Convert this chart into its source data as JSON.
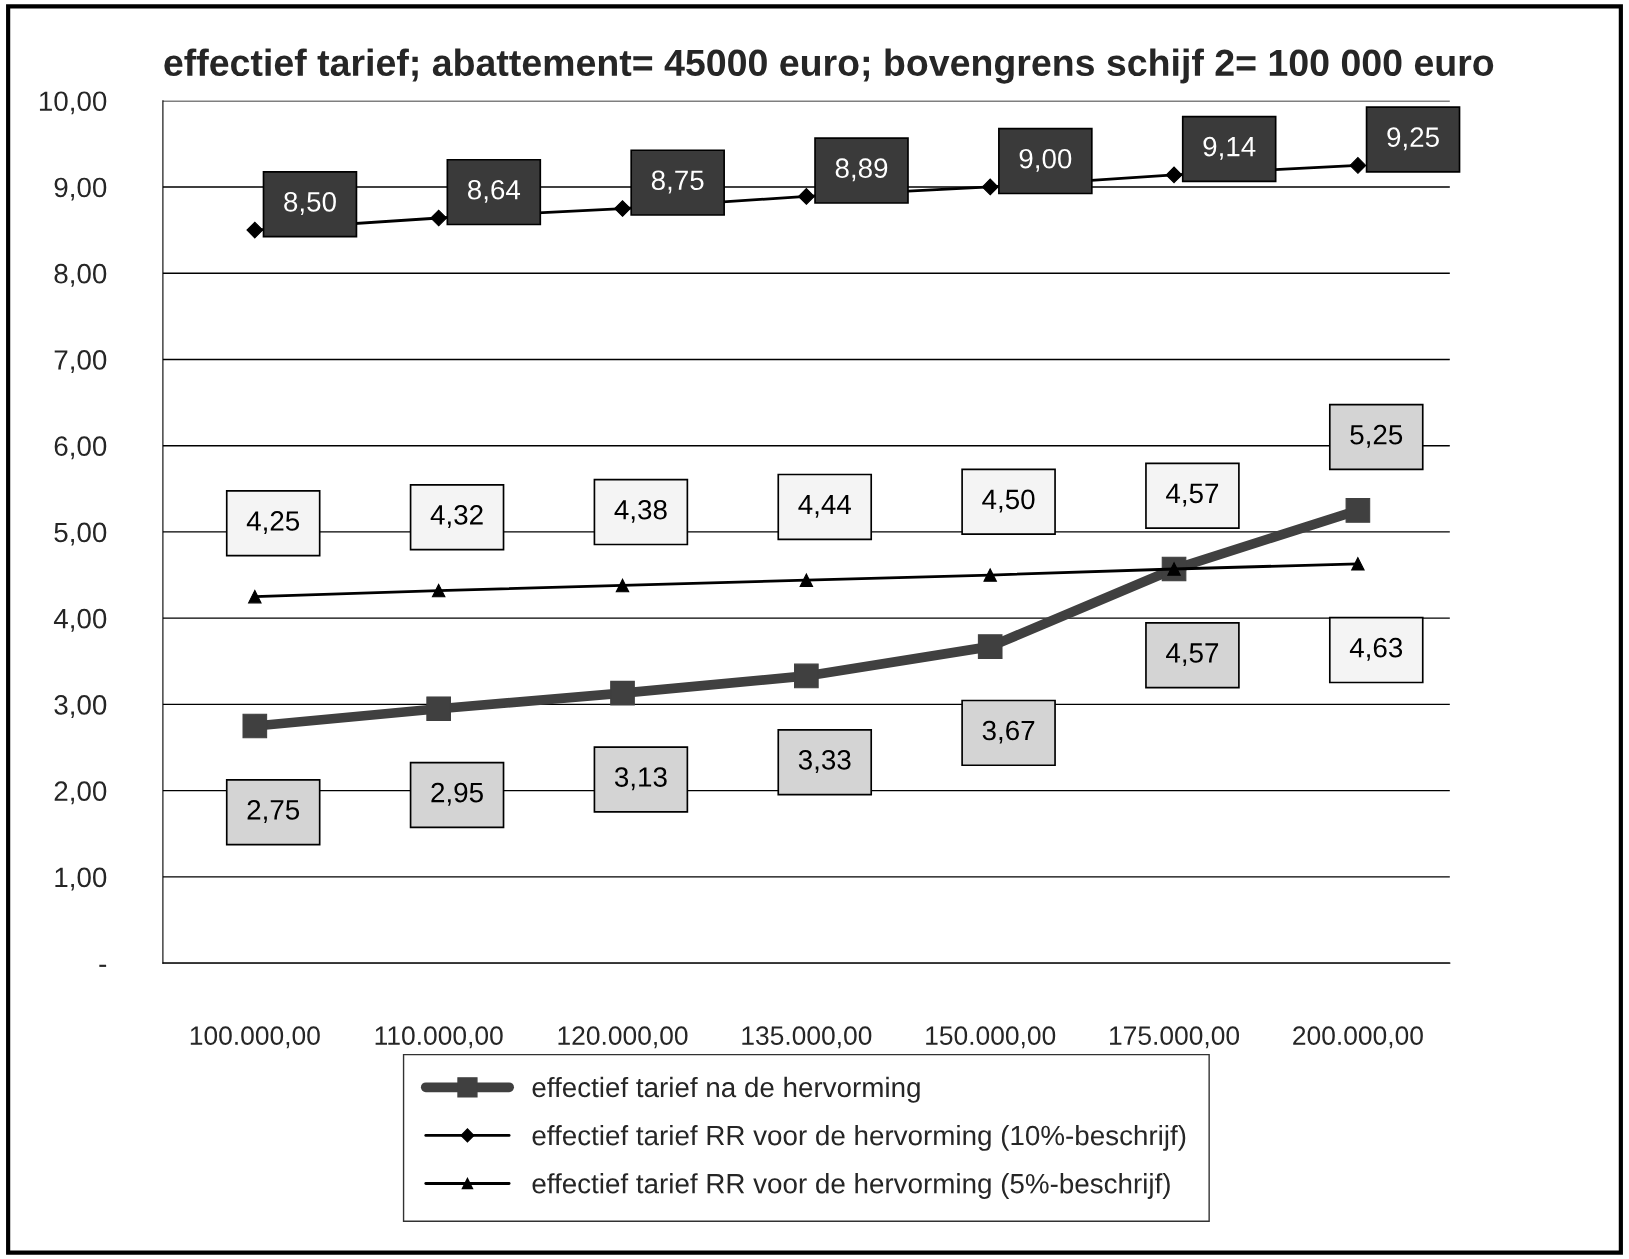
{
  "chart_data": {
    "type": "line",
    "title": "effectief tarief; abattement= 45000 euro; bovengrens schijf 2= 100 000 euro",
    "categories": [
      "100.000,00",
      "110.000,00",
      "120.000,00",
      "135.000,00",
      "150.000,00",
      "175.000,00",
      "200.000,00"
    ],
    "series": [
      {
        "name": "effectief tarief na de hervorming",
        "color": "#404040",
        "marker": "square",
        "values": [
          2.75,
          2.95,
          3.13,
          3.33,
          3.67,
          4.57,
          5.25
        ],
        "value_labels": [
          "2,75",
          "2,95",
          "3,13",
          "3,33",
          "3,67",
          "4,57",
          "5,25"
        ]
      },
      {
        "name": "effectief tarief RR voor de hervorming (10%-beschrijf)",
        "color": "#000000",
        "marker": "diamond",
        "values": [
          8.5,
          8.64,
          8.75,
          8.89,
          9.0,
          9.14,
          9.25
        ],
        "value_labels": [
          "8,50",
          "8,64",
          "8,75",
          "8,89",
          "9,00",
          "9,14",
          "9,25"
        ]
      },
      {
        "name": "effectief tarief RR voor de hervorming (5%-beschrijf)",
        "color": "#000000",
        "marker": "triangle",
        "values": [
          4.25,
          4.32,
          4.38,
          4.44,
          4.5,
          4.57,
          4.63
        ],
        "value_labels": [
          "4,25",
          "4,32",
          "4,38",
          "4,44",
          "4,50",
          "4,57",
          "4,63"
        ]
      }
    ],
    "ylim": [
      0,
      10
    ],
    "yticks": [
      {
        "value": 0,
        "label": "-"
      },
      {
        "value": 1,
        "label": "1,00"
      },
      {
        "value": 2,
        "label": "2,00"
      },
      {
        "value": 3,
        "label": "3,00"
      },
      {
        "value": 4,
        "label": "4,00"
      },
      {
        "value": 5,
        "label": "5,00"
      },
      {
        "value": 6,
        "label": "6,00"
      },
      {
        "value": 7,
        "label": "7,00"
      },
      {
        "value": 8,
        "label": "8,00"
      },
      {
        "value": 9,
        "label": "9,00"
      },
      {
        "value": 10,
        "label": "10,00"
      }
    ],
    "grid": "y",
    "legend": "bottom"
  }
}
